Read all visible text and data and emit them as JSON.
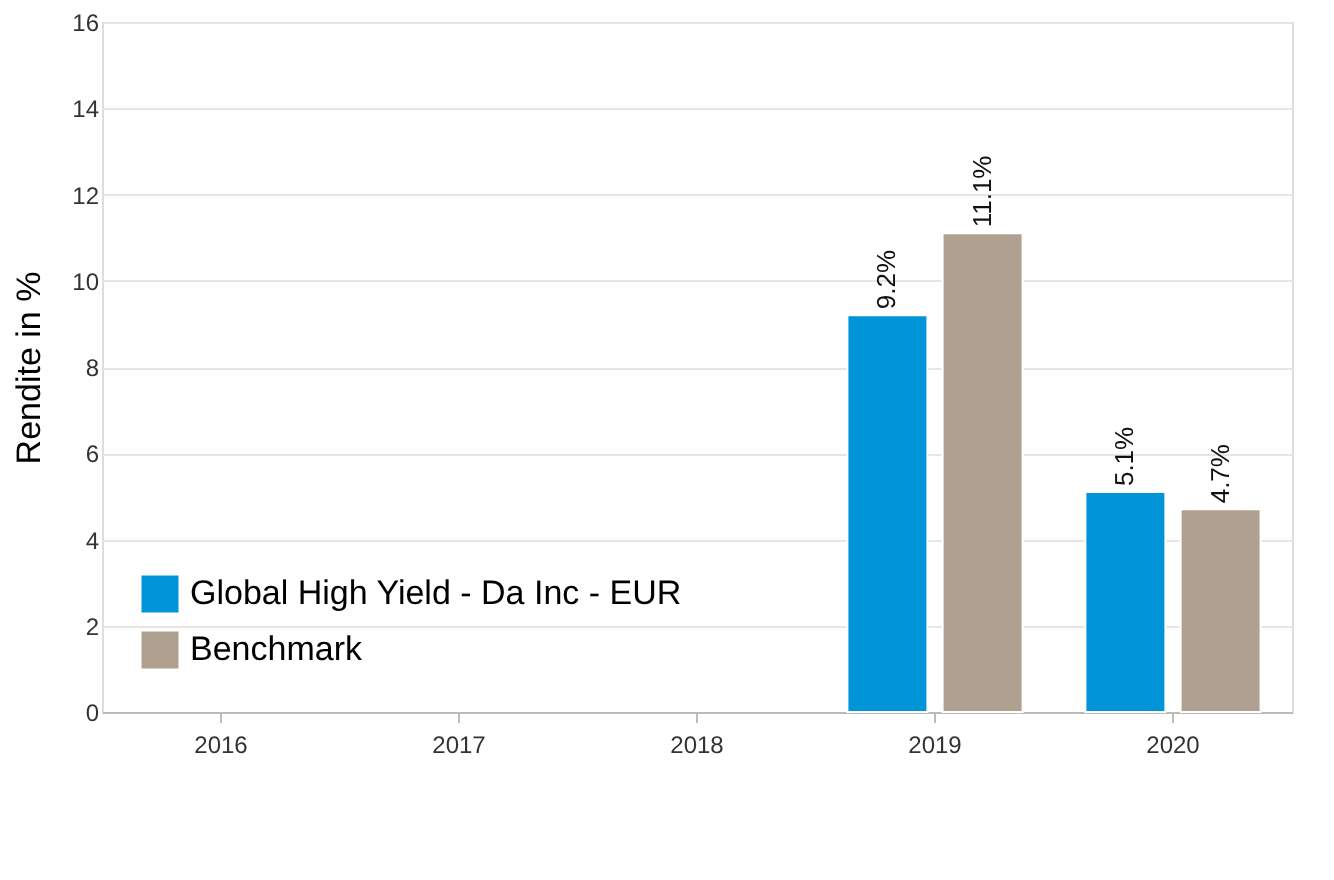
{
  "chart_data": {
    "type": "bar",
    "ylabel": "Rendite in %",
    "categories": [
      "2016",
      "2017",
      "2018",
      "2019",
      "2020"
    ],
    "series": [
      {
        "name": "Global High Yield - Da Inc - EUR",
        "color": "#0095d9",
        "values": [
          null,
          null,
          null,
          9.2,
          5.1
        ],
        "value_labels": [
          null,
          null,
          null,
          "9.2%",
          "5.1%"
        ]
      },
      {
        "name": "Benchmark",
        "color": "#b0a090",
        "values": [
          null,
          null,
          null,
          11.1,
          4.7
        ],
        "value_labels": [
          null,
          null,
          null,
          "11.1%",
          "4.7%"
        ]
      }
    ],
    "ylim": [
      0,
      16
    ],
    "yticks": [
      0,
      2,
      4,
      6,
      8,
      10,
      12,
      14,
      16
    ],
    "grid": "y",
    "legend": "bottom left"
  }
}
